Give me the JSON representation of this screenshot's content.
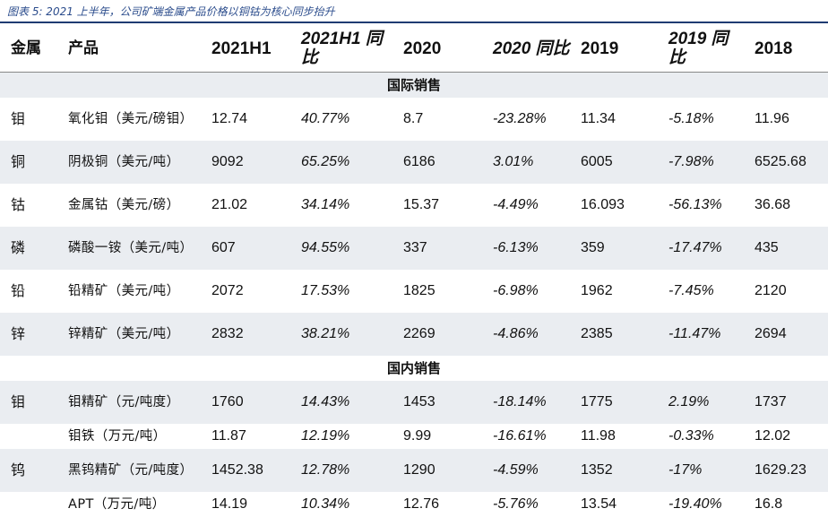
{
  "caption": "图表 5: 2021 上半年，公司矿端金属产品价格以铜钴为核心同步抬升",
  "headers": {
    "metal": "金属",
    "product": "产品",
    "h2021h1": "2021H1",
    "h2021h1_yoy": "2021H1 同比",
    "h2020": "2020",
    "h2020_yoy": "2020 同比",
    "h2019": "2019",
    "h2019_yoy": "2019 同比",
    "h2018": "2018"
  },
  "sections": {
    "international": "国际销售",
    "domestic": "国内销售"
  },
  "rows": [
    {
      "metal": "钼",
      "product": "氧化钼（美元/磅钼）",
      "v2021h1": "12.74",
      "y2021h1": "40.77%",
      "v2020": "8.7",
      "y2020": "-23.28%",
      "v2019": "11.34",
      "y2019": "-5.18%",
      "v2018": "11.96"
    },
    {
      "metal": "铜",
      "product": "阴极铜（美元/吨）",
      "v2021h1": "9092",
      "y2021h1": "65.25%",
      "v2020": "6186",
      "y2020": "3.01%",
      "v2019": "6005",
      "y2019": "-7.98%",
      "v2018": "6525.68"
    },
    {
      "metal": "钴",
      "product": "金属钴（美元/磅）",
      "v2021h1": "21.02",
      "y2021h1": "34.14%",
      "v2020": "15.37",
      "y2020": "-4.49%",
      "v2019": "16.093",
      "y2019": "-56.13%",
      "v2018": "36.68"
    },
    {
      "metal": "磷",
      "product": "磷酸一铵（美元/吨）",
      "v2021h1": "607",
      "y2021h1": "94.55%",
      "v2020": "337",
      "y2020": "-6.13%",
      "v2019": "359",
      "y2019": "-17.47%",
      "v2018": "435"
    },
    {
      "metal": "铅",
      "product": "铅精矿（美元/吨）",
      "v2021h1": "2072",
      "y2021h1": "17.53%",
      "v2020": "1825",
      "y2020": "-6.98%",
      "v2019": "1962",
      "y2019": "-7.45%",
      "v2018": "2120"
    },
    {
      "metal": "锌",
      "product": "锌精矿（美元/吨）",
      "v2021h1": "2832",
      "y2021h1": "38.21%",
      "v2020": "2269",
      "y2020": "-4.86%",
      "v2019": "2385",
      "y2019": "-11.47%",
      "v2018": "2694"
    },
    {
      "metal": "钼",
      "product": "钼精矿（元/吨度）",
      "v2021h1": "1760",
      "y2021h1": "14.43%",
      "v2020": "1453",
      "y2020": "-18.14%",
      "v2019": "1775",
      "y2019": "2.19%",
      "v2018": "1737"
    },
    {
      "metal": "",
      "product": "钼铁（万元/吨）",
      "v2021h1": "11.87",
      "y2021h1": "12.19%",
      "v2020": "9.99",
      "y2020": "-16.61%",
      "v2019": "11.98",
      "y2019": "-0.33%",
      "v2018": "12.02"
    },
    {
      "metal": "钨",
      "product": "黑钨精矿（元/吨度）",
      "v2021h1": "1452.38",
      "y2021h1": "12.78%",
      "v2020": "1290",
      "y2020": "-4.59%",
      "v2019": "1352",
      "y2019": "-17%",
      "v2018": "1629.23"
    },
    {
      "metal": "",
      "product": "APT（万元/吨）",
      "v2021h1": "14.19",
      "y2021h1": "10.34%",
      "v2020": "12.76",
      "y2020": "-5.76%",
      "v2019": "13.54",
      "y2019": "-19.40%",
      "v2018": "16.8"
    }
  ]
}
